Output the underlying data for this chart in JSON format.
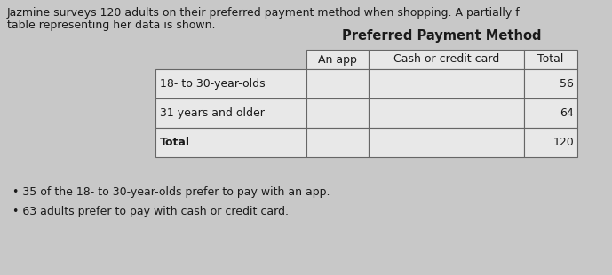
{
  "intro_text_line1": "Jazmine surveys 120 adults on their preferred payment method when shopping. A partially f",
  "intro_text_line2": "table representing her data is shown.",
  "table_title": "Preferred Payment Method",
  "col_headers": [
    "An app",
    "Cash or credit card",
    "Total"
  ],
  "row_labels": [
    "18- to 30-year-olds",
    "31 years and older",
    "Total"
  ],
  "totals": [
    "56",
    "64",
    "120"
  ],
  "bullet1": "35 of the 18- to 30-year-olds prefer to pay with an app.",
  "bullet2": "63 adults prefer to pay with cash or credit card.",
  "bg_color": "#c8c8c8",
  "cell_color": "#e8e8e8",
  "text_color": "#1a1a1a",
  "border_color": "#666666",
  "title_fontsize": 10.5,
  "body_fontsize": 9,
  "intro_fontsize": 9
}
